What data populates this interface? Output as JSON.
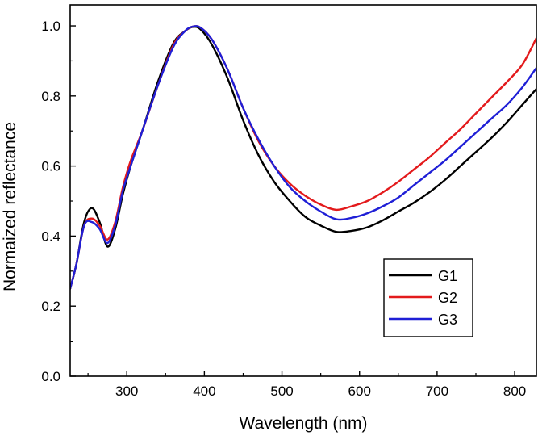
{
  "chart_data": {
    "type": "line",
    "title": "",
    "xlabel": "Wavelength (nm)",
    "ylabel": "Normaized reflectance",
    "xlim": [
      227,
      828
    ],
    "ylim": [
      0.0,
      1.06
    ],
    "xticks": [
      300,
      400,
      500,
      600,
      700,
      800
    ],
    "xtick_labels": [
      "300",
      "400",
      "500",
      "600",
      "700",
      "800"
    ],
    "yticks": [
      0.0,
      0.2,
      0.4,
      0.6,
      0.8,
      1.0
    ],
    "ytick_labels": [
      "0.0",
      "0.2",
      "0.4",
      "0.6",
      "0.8",
      "1.0"
    ],
    "grid": false,
    "legend": {
      "placement": "center-right"
    },
    "series": [
      {
        "name": "G1",
        "color": "#000000",
        "x": [
          227,
          235,
          245,
          255,
          265,
          275,
          285,
          295,
          305,
          320,
          340,
          360,
          375,
          385,
          395,
          410,
          430,
          450,
          470,
          490,
          510,
          530,
          550,
          570,
          590,
          610,
          630,
          650,
          670,
          690,
          710,
          730,
          750,
          770,
          790,
          810,
          828
        ],
        "y": [
          0.25,
          0.32,
          0.44,
          0.48,
          0.44,
          0.37,
          0.42,
          0.52,
          0.6,
          0.7,
          0.84,
          0.95,
          0.985,
          0.997,
          0.99,
          0.945,
          0.85,
          0.73,
          0.63,
          0.555,
          0.5,
          0.455,
          0.43,
          0.412,
          0.415,
          0.425,
          0.445,
          0.47,
          0.495,
          0.525,
          0.56,
          0.6,
          0.64,
          0.68,
          0.725,
          0.775,
          0.82
        ]
      },
      {
        "name": "G2",
        "color": "#e31a1c",
        "x": [
          227,
          235,
          245,
          255,
          265,
          275,
          285,
          295,
          305,
          320,
          340,
          360,
          375,
          385,
          395,
          410,
          430,
          450,
          470,
          490,
          510,
          530,
          550,
          570,
          590,
          610,
          630,
          650,
          670,
          690,
          710,
          730,
          750,
          770,
          790,
          810,
          828
        ],
        "y": [
          0.25,
          0.32,
          0.43,
          0.45,
          0.43,
          0.39,
          0.44,
          0.54,
          0.615,
          0.7,
          0.83,
          0.945,
          0.985,
          0.998,
          0.995,
          0.96,
          0.875,
          0.765,
          0.67,
          0.6,
          0.55,
          0.515,
          0.49,
          0.475,
          0.485,
          0.5,
          0.525,
          0.555,
          0.59,
          0.625,
          0.665,
          0.705,
          0.75,
          0.795,
          0.84,
          0.89,
          0.965
        ]
      },
      {
        "name": "G3",
        "color": "#1f1fd6",
        "x": [
          227,
          235,
          245,
          255,
          265,
          275,
          285,
          295,
          305,
          320,
          340,
          360,
          375,
          385,
          395,
          410,
          430,
          450,
          470,
          490,
          510,
          530,
          550,
          570,
          590,
          610,
          630,
          650,
          670,
          690,
          710,
          730,
          750,
          770,
          790,
          810,
          828
        ],
        "y": [
          0.25,
          0.32,
          0.43,
          0.44,
          0.42,
          0.38,
          0.43,
          0.53,
          0.6,
          0.7,
          0.83,
          0.94,
          0.985,
          0.998,
          0.995,
          0.96,
          0.875,
          0.765,
          0.675,
          0.6,
          0.54,
          0.5,
          0.47,
          0.448,
          0.452,
          0.465,
          0.485,
          0.51,
          0.545,
          0.58,
          0.615,
          0.655,
          0.695,
          0.735,
          0.775,
          0.825,
          0.88
        ]
      }
    ]
  }
}
